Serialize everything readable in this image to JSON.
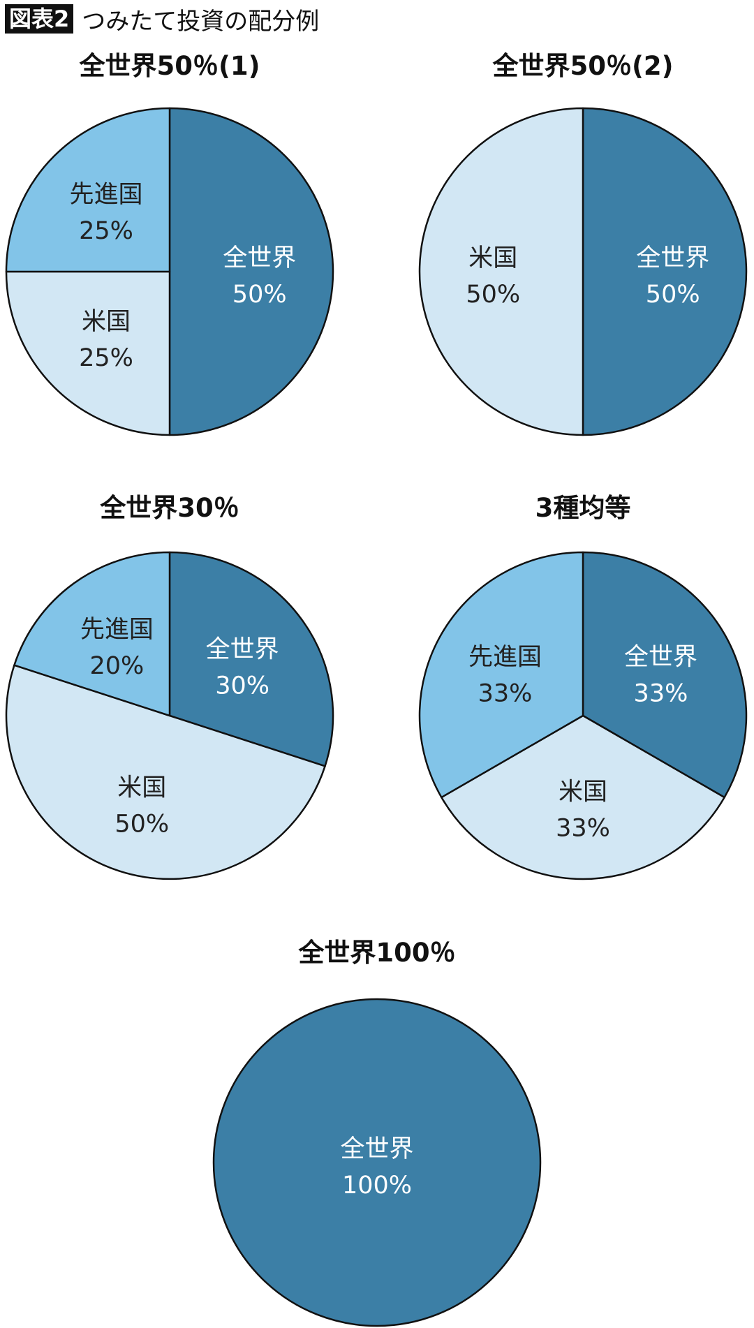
{
  "header": {
    "figure_number": "図表2",
    "title": "つみたて投資の配分例"
  },
  "colors": {
    "全世界": "#3c7fa6",
    "先進国": "#82c4e8",
    "米国": "#d2e7f4",
    "outline": "#111111"
  },
  "chart_data": [
    {
      "type": "pie",
      "title": "全世界50％(1)",
      "start": "top",
      "direction": "clockwise",
      "slices": [
        {
          "label": "全世界",
          "value": 50,
          "value_label": "50%"
        },
        {
          "label": "米国",
          "value": 25,
          "value_label": "25%"
        },
        {
          "label": "先進国",
          "value": 25,
          "value_label": "25%"
        }
      ]
    },
    {
      "type": "pie",
      "title": "全世界50％(2)",
      "start": "top",
      "direction": "clockwise",
      "slices": [
        {
          "label": "全世界",
          "value": 50,
          "value_label": "50%"
        },
        {
          "label": "米国",
          "value": 50,
          "value_label": "50%"
        }
      ]
    },
    {
      "type": "pie",
      "title": "全世界30％",
      "start": "top",
      "direction": "clockwise",
      "slices": [
        {
          "label": "全世界",
          "value": 30,
          "value_label": "30%"
        },
        {
          "label": "米国",
          "value": 50,
          "value_label": "50%"
        },
        {
          "label": "先進国",
          "value": 20,
          "value_label": "20%"
        }
      ]
    },
    {
      "type": "pie",
      "title": "3種均等",
      "start": "top",
      "direction": "clockwise",
      "slices": [
        {
          "label": "全世界",
          "value": 33.33,
          "value_label": "33%"
        },
        {
          "label": "米国",
          "value": 33.33,
          "value_label": "33%"
        },
        {
          "label": "先進国",
          "value": 33.33,
          "value_label": "33%"
        }
      ]
    },
    {
      "type": "pie",
      "title": "全世界100％",
      "start": "top",
      "direction": "clockwise",
      "slices": [
        {
          "label": "全世界",
          "value": 100,
          "value_label": "100%"
        }
      ]
    }
  ]
}
